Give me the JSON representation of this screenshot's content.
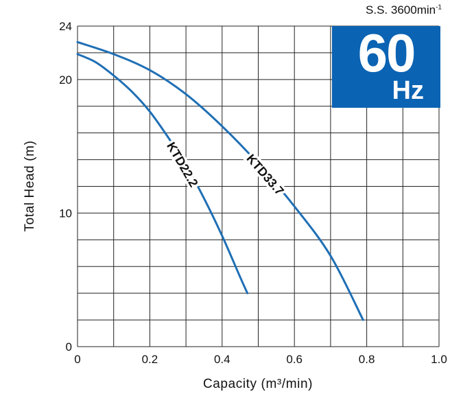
{
  "header": {
    "speed_text": "S.S. 3600min",
    "speed_exp": "-1"
  },
  "badge": {
    "number": "60",
    "unit": "Hz",
    "color": "#0b63b3"
  },
  "chart_data": {
    "type": "line",
    "title": "",
    "xlabel": "Capacity (m³/min)",
    "ylabel": "Total Head (m)",
    "xlim": [
      0,
      1.0
    ],
    "ylim": [
      0,
      24
    ],
    "x_ticks": [
      "0",
      "0.2",
      "0.4",
      "0.6",
      "0.8",
      "1.0"
    ],
    "y_ticks": [
      "0",
      "10",
      "20",
      "24"
    ],
    "grid": true,
    "line_color": "#1f6fb5",
    "series": [
      {
        "name": "KTD22.2",
        "x": [
          0,
          0.05,
          0.1,
          0.15,
          0.2,
          0.25,
          0.3,
          0.35,
          0.4,
          0.45,
          0.47
        ],
        "y": [
          21.9,
          21.3,
          20.3,
          19.1,
          17.6,
          15.7,
          13.6,
          11.1,
          8.3,
          5.2,
          4.0
        ]
      },
      {
        "name": "KTD33.7",
        "x": [
          0,
          0.1,
          0.2,
          0.3,
          0.4,
          0.5,
          0.6,
          0.7,
          0.79
        ],
        "y": [
          22.8,
          21.9,
          20.7,
          18.9,
          16.5,
          13.7,
          10.5,
          6.8,
          2.0
        ]
      }
    ]
  }
}
